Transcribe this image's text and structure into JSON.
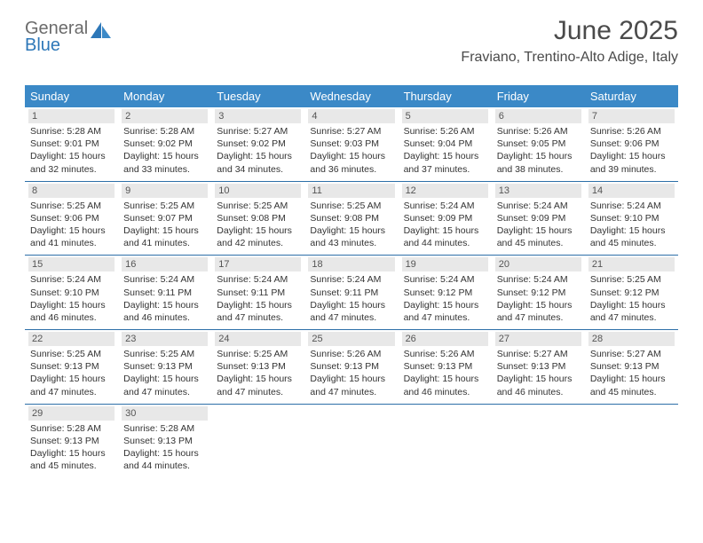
{
  "logo": {
    "text_top": "General",
    "text_bottom": "Blue"
  },
  "header": {
    "title": "June 2025",
    "subtitle": "Fraviano, Trentino-Alto Adige, Italy"
  },
  "colors": {
    "header_bg": "#3b89c7",
    "header_text": "#ffffff",
    "daynum_bg": "#e8e8e8",
    "row_border": "#2d6fa8",
    "logo_gray": "#6b6b6b",
    "logo_blue": "#2d77b8"
  },
  "weekdays": [
    "Sunday",
    "Monday",
    "Tuesday",
    "Wednesday",
    "Thursday",
    "Friday",
    "Saturday"
  ],
  "weeks": [
    [
      {
        "day": "1",
        "sunrise": "5:28 AM",
        "sunset": "9:01 PM",
        "daylight": "15 hours and 32 minutes."
      },
      {
        "day": "2",
        "sunrise": "5:28 AM",
        "sunset": "9:02 PM",
        "daylight": "15 hours and 33 minutes."
      },
      {
        "day": "3",
        "sunrise": "5:27 AM",
        "sunset": "9:02 PM",
        "daylight": "15 hours and 34 minutes."
      },
      {
        "day": "4",
        "sunrise": "5:27 AM",
        "sunset": "9:03 PM",
        "daylight": "15 hours and 36 minutes."
      },
      {
        "day": "5",
        "sunrise": "5:26 AM",
        "sunset": "9:04 PM",
        "daylight": "15 hours and 37 minutes."
      },
      {
        "day": "6",
        "sunrise": "5:26 AM",
        "sunset": "9:05 PM",
        "daylight": "15 hours and 38 minutes."
      },
      {
        "day": "7",
        "sunrise": "5:26 AM",
        "sunset": "9:06 PM",
        "daylight": "15 hours and 39 minutes."
      }
    ],
    [
      {
        "day": "8",
        "sunrise": "5:25 AM",
        "sunset": "9:06 PM",
        "daylight": "15 hours and 41 minutes."
      },
      {
        "day": "9",
        "sunrise": "5:25 AM",
        "sunset": "9:07 PM",
        "daylight": "15 hours and 41 minutes."
      },
      {
        "day": "10",
        "sunrise": "5:25 AM",
        "sunset": "9:08 PM",
        "daylight": "15 hours and 42 minutes."
      },
      {
        "day": "11",
        "sunrise": "5:25 AM",
        "sunset": "9:08 PM",
        "daylight": "15 hours and 43 minutes."
      },
      {
        "day": "12",
        "sunrise": "5:24 AM",
        "sunset": "9:09 PM",
        "daylight": "15 hours and 44 minutes."
      },
      {
        "day": "13",
        "sunrise": "5:24 AM",
        "sunset": "9:09 PM",
        "daylight": "15 hours and 45 minutes."
      },
      {
        "day": "14",
        "sunrise": "5:24 AM",
        "sunset": "9:10 PM",
        "daylight": "15 hours and 45 minutes."
      }
    ],
    [
      {
        "day": "15",
        "sunrise": "5:24 AM",
        "sunset": "9:10 PM",
        "daylight": "15 hours and 46 minutes."
      },
      {
        "day": "16",
        "sunrise": "5:24 AM",
        "sunset": "9:11 PM",
        "daylight": "15 hours and 46 minutes."
      },
      {
        "day": "17",
        "sunrise": "5:24 AM",
        "sunset": "9:11 PM",
        "daylight": "15 hours and 47 minutes."
      },
      {
        "day": "18",
        "sunrise": "5:24 AM",
        "sunset": "9:11 PM",
        "daylight": "15 hours and 47 minutes."
      },
      {
        "day": "19",
        "sunrise": "5:24 AM",
        "sunset": "9:12 PM",
        "daylight": "15 hours and 47 minutes."
      },
      {
        "day": "20",
        "sunrise": "5:24 AM",
        "sunset": "9:12 PM",
        "daylight": "15 hours and 47 minutes."
      },
      {
        "day": "21",
        "sunrise": "5:25 AM",
        "sunset": "9:12 PM",
        "daylight": "15 hours and 47 minutes."
      }
    ],
    [
      {
        "day": "22",
        "sunrise": "5:25 AM",
        "sunset": "9:13 PM",
        "daylight": "15 hours and 47 minutes."
      },
      {
        "day": "23",
        "sunrise": "5:25 AM",
        "sunset": "9:13 PM",
        "daylight": "15 hours and 47 minutes."
      },
      {
        "day": "24",
        "sunrise": "5:25 AM",
        "sunset": "9:13 PM",
        "daylight": "15 hours and 47 minutes."
      },
      {
        "day": "25",
        "sunrise": "5:26 AM",
        "sunset": "9:13 PM",
        "daylight": "15 hours and 47 minutes."
      },
      {
        "day": "26",
        "sunrise": "5:26 AM",
        "sunset": "9:13 PM",
        "daylight": "15 hours and 46 minutes."
      },
      {
        "day": "27",
        "sunrise": "5:27 AM",
        "sunset": "9:13 PM",
        "daylight": "15 hours and 46 minutes."
      },
      {
        "day": "28",
        "sunrise": "5:27 AM",
        "sunset": "9:13 PM",
        "daylight": "15 hours and 45 minutes."
      }
    ],
    [
      {
        "day": "29",
        "sunrise": "5:28 AM",
        "sunset": "9:13 PM",
        "daylight": "15 hours and 45 minutes."
      },
      {
        "day": "30",
        "sunrise": "5:28 AM",
        "sunset": "9:13 PM",
        "daylight": "15 hours and 44 minutes."
      },
      null,
      null,
      null,
      null,
      null
    ]
  ],
  "labels": {
    "sunrise": "Sunrise:",
    "sunset": "Sunset:",
    "daylight": "Daylight:"
  }
}
